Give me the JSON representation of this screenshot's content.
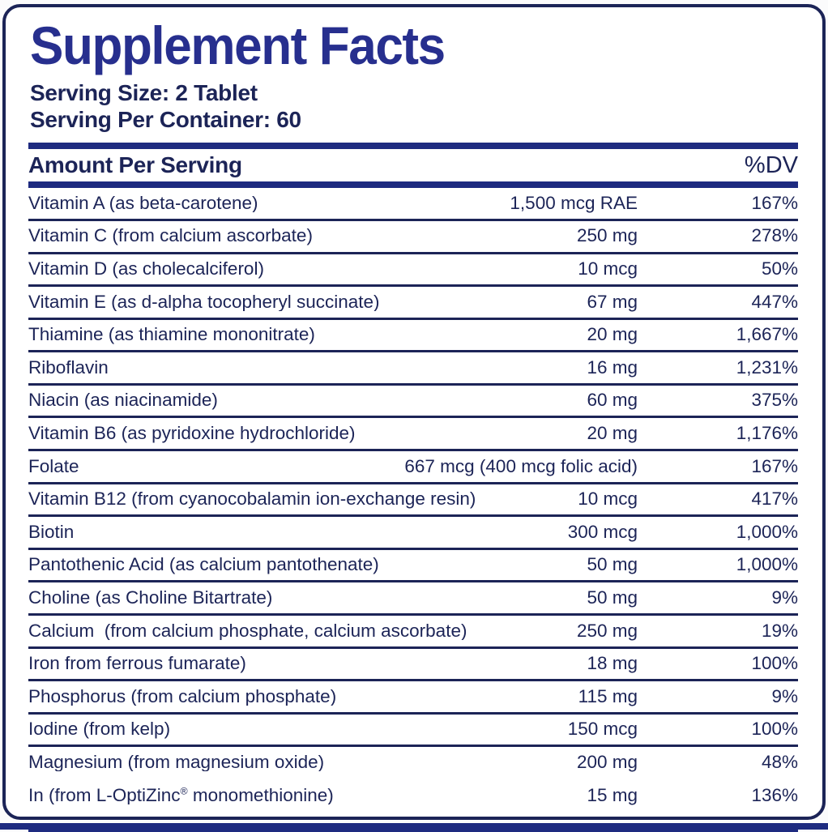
{
  "label": {
    "title": "Supplement Facts",
    "serving_size": "Serving Size: 2 Tablet",
    "servings_per_container": "Serving Per Container: 60",
    "header": {
      "amount_per_serving": "Amount Per Serving",
      "dv": "%DV"
    },
    "rows": [
      {
        "name": "Vitamin A (as beta-carotene)",
        "amount": "1,500 mcg RAE",
        "dv": "167%",
        "divider": true
      },
      {
        "name": "Vitamin C (from calcium ascorbate)",
        "amount": "250 mg",
        "dv": "278%",
        "divider": true
      },
      {
        "name": "Vitamin D (as cholecalciferol)",
        "amount": "10 mcg",
        "dv": "50%",
        "divider": true
      },
      {
        "name": "Vitamin E (as d-alpha tocopheryl succinate)",
        "amount": "67 mg",
        "dv": "447%",
        "divider": true
      },
      {
        "name": "Thiamine (as thiamine mononitrate)",
        "amount": "20 mg",
        "dv": "1,667%",
        "divider": true
      },
      {
        "name": "Riboflavin",
        "amount": "16 mg",
        "dv": "1,231%",
        "divider": true
      },
      {
        "name": "Niacin (as niacinamide)",
        "amount": "60 mg",
        "dv": "375%",
        "divider": true
      },
      {
        "name": "Vitamin B6 (as pyridoxine hydrochloride)",
        "amount": "20 mg",
        "dv": "1,176%",
        "divider": true
      },
      {
        "name": "Folate",
        "amount": "667 mcg (400 mcg folic acid)",
        "dv": "167%",
        "divider": true
      },
      {
        "name": "Vitamin B12 (from cyanocobalamin ion-exchange resin)",
        "amount": "10 mcg",
        "dv": "417%",
        "divider": true
      },
      {
        "name": "Biotin",
        "amount": "300 mcg",
        "dv": "1,000%",
        "divider": true
      },
      {
        "name": "Pantothenic Acid (as calcium pantothenate)",
        "amount": "50 mg",
        "dv": "1,000%",
        "divider": true
      },
      {
        "name": "Choline (as Choline Bitartrate)",
        "amount": "50 mg",
        "dv": "9%",
        "divider": true
      },
      {
        "name": "Calcium  (from calcium phosphate, calcium ascorbate)",
        "amount": "250 mg",
        "dv": "19%",
        "divider": true
      },
      {
        "name": "Iron from ferrous fumarate)",
        "amount": "18 mg",
        "dv": "100%",
        "divider": true
      },
      {
        "name": "Phosphorus (from calcium phosphate)",
        "amount": "115 mg",
        "dv": "9%",
        "divider": true
      },
      {
        "name": "Iodine (from kelp)",
        "amount": "150 mcg",
        "dv": "100%",
        "divider": true
      },
      {
        "name": "Magnesium (from magnesium oxide)",
        "amount": "200 mg",
        "dv": "48%",
        "divider": false
      },
      {
        "name": "In (from L-OptiZinc® monomethionine)",
        "amount": "15 mg",
        "dv": "136%",
        "divider": false
      }
    ]
  },
  "colors": {
    "title_blue": "#272f8e",
    "text_navy": "#1c2457",
    "bar_blue": "#1e2b80",
    "background": "#ffffff"
  }
}
